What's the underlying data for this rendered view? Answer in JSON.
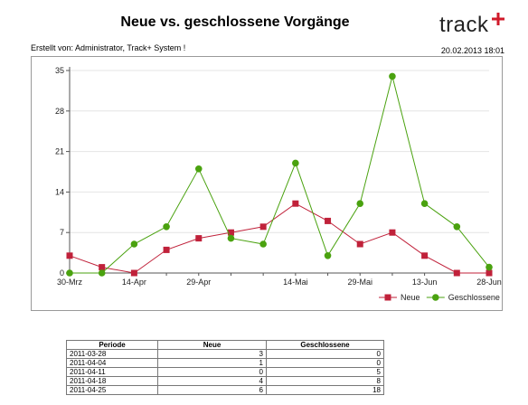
{
  "header": {
    "title": "Neue vs. geschlossene Vorgänge",
    "logo_text": "track",
    "created_by": "Erstellt von: Administrator, Track+ System !",
    "timestamp": "20.02.2013 18:01"
  },
  "colors": {
    "neue": "#c0213a",
    "geschlossene": "#4aa20f"
  },
  "chart_data": {
    "type": "line",
    "x": [
      0,
      1,
      2,
      3,
      4,
      5,
      6,
      7,
      8,
      9,
      10,
      11,
      12,
      13
    ],
    "x_tick_labels": [
      "30-Mrz",
      "14-Apr",
      "29-Apr",
      "14-Mai",
      "29-Mai",
      "13-Jun",
      "28-Jun"
    ],
    "series": [
      {
        "name": "Neue",
        "values": [
          3,
          1,
          0,
          4,
          6,
          7,
          8,
          12,
          9,
          5,
          7,
          3,
          0,
          0
        ]
      },
      {
        "name": "Geschlossene",
        "values": [
          0,
          0,
          5,
          8,
          18,
          6,
          5,
          19,
          3,
          12,
          34,
          12,
          8,
          1
        ]
      }
    ],
    "ylim": [
      0,
      35
    ],
    "yticks": [
      0,
      7,
      14,
      21,
      28,
      35
    ],
    "grid": true,
    "legend": "bottom-right"
  },
  "table": {
    "headers": [
      "Periode",
      "Neue",
      "Geschlossene"
    ],
    "rows": [
      [
        "2011-03-28",
        "3",
        "0"
      ],
      [
        "2011-04-04",
        "1",
        "0"
      ],
      [
        "2011-04-11",
        "0",
        "5"
      ],
      [
        "2011-04-18",
        "4",
        "8"
      ],
      [
        "2011-04-25",
        "6",
        "18"
      ]
    ]
  }
}
